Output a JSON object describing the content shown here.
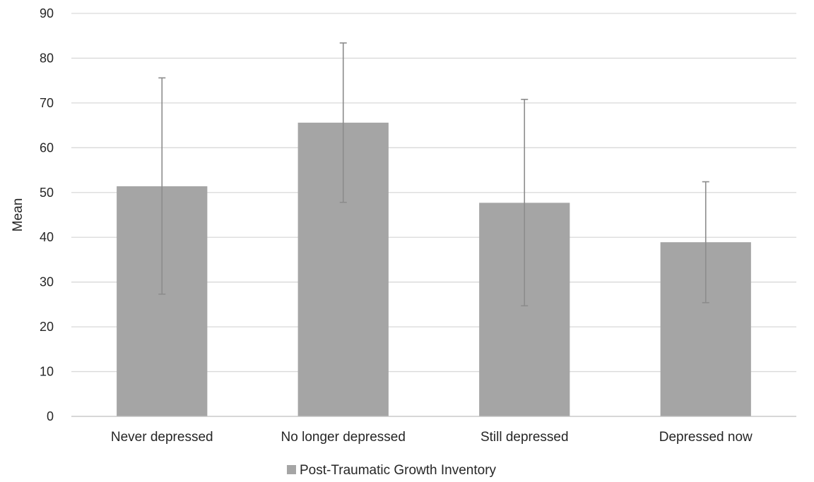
{
  "chart_data": {
    "type": "bar",
    "title": "",
    "xlabel": "",
    "ylabel": "Mean",
    "ylim": [
      0,
      90
    ],
    "yticks": [
      0,
      10,
      20,
      30,
      40,
      50,
      60,
      70,
      80,
      90
    ],
    "grid": true,
    "legend_position": "bottom",
    "categories": [
      "Never depressed",
      "No longer depressed",
      "Still depressed",
      "Depressed now"
    ],
    "series": [
      {
        "name": "Post-Traumatic Growth Inventory",
        "color": "#a5a5a5",
        "values": [
          51.4,
          65.6,
          47.7,
          38.9
        ],
        "error_low": [
          27.3,
          47.8,
          24.7,
          25.4
        ],
        "error_high": [
          75.6,
          83.4,
          70.8,
          52.4
        ]
      }
    ]
  }
}
